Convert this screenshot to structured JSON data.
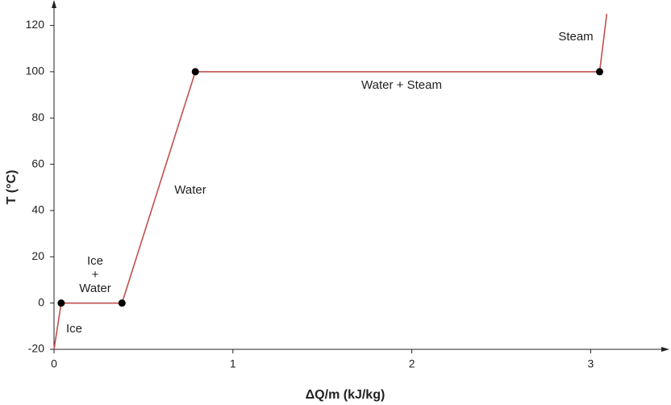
{
  "chart_data": {
    "type": "line",
    "xlabel": "ΔQ/m (kJ/kg)",
    "ylabel": "T (°C)",
    "xlim": [
      0,
      3.44
    ],
    "ylim": [
      -20,
      131
    ],
    "xticks": [
      0,
      1,
      2,
      3
    ],
    "yticks": [
      -20,
      0,
      20,
      40,
      60,
      80,
      100,
      120
    ],
    "series": [
      {
        "color": "#c0504d",
        "x": [
          0,
          0.04,
          0.38,
          0.79,
          3.05,
          3.09
        ],
        "values": [
          -20,
          0,
          0,
          100,
          100,
          125
        ]
      }
    ],
    "markers": {
      "color": "#000000",
      "x": [
        0.04,
        0.38,
        0.79,
        3.05
      ],
      "values": [
        0,
        0,
        100,
        100
      ]
    },
    "annotations": [
      {
        "lines": [
          "Ice"
        ]
      },
      {
        "lines": [
          "Ice",
          "+",
          "Water"
        ]
      },
      {
        "lines": [
          "Water"
        ]
      },
      {
        "lines": [
          "Water + Steam"
        ]
      },
      {
        "lines": [
          "Steam"
        ]
      }
    ]
  }
}
